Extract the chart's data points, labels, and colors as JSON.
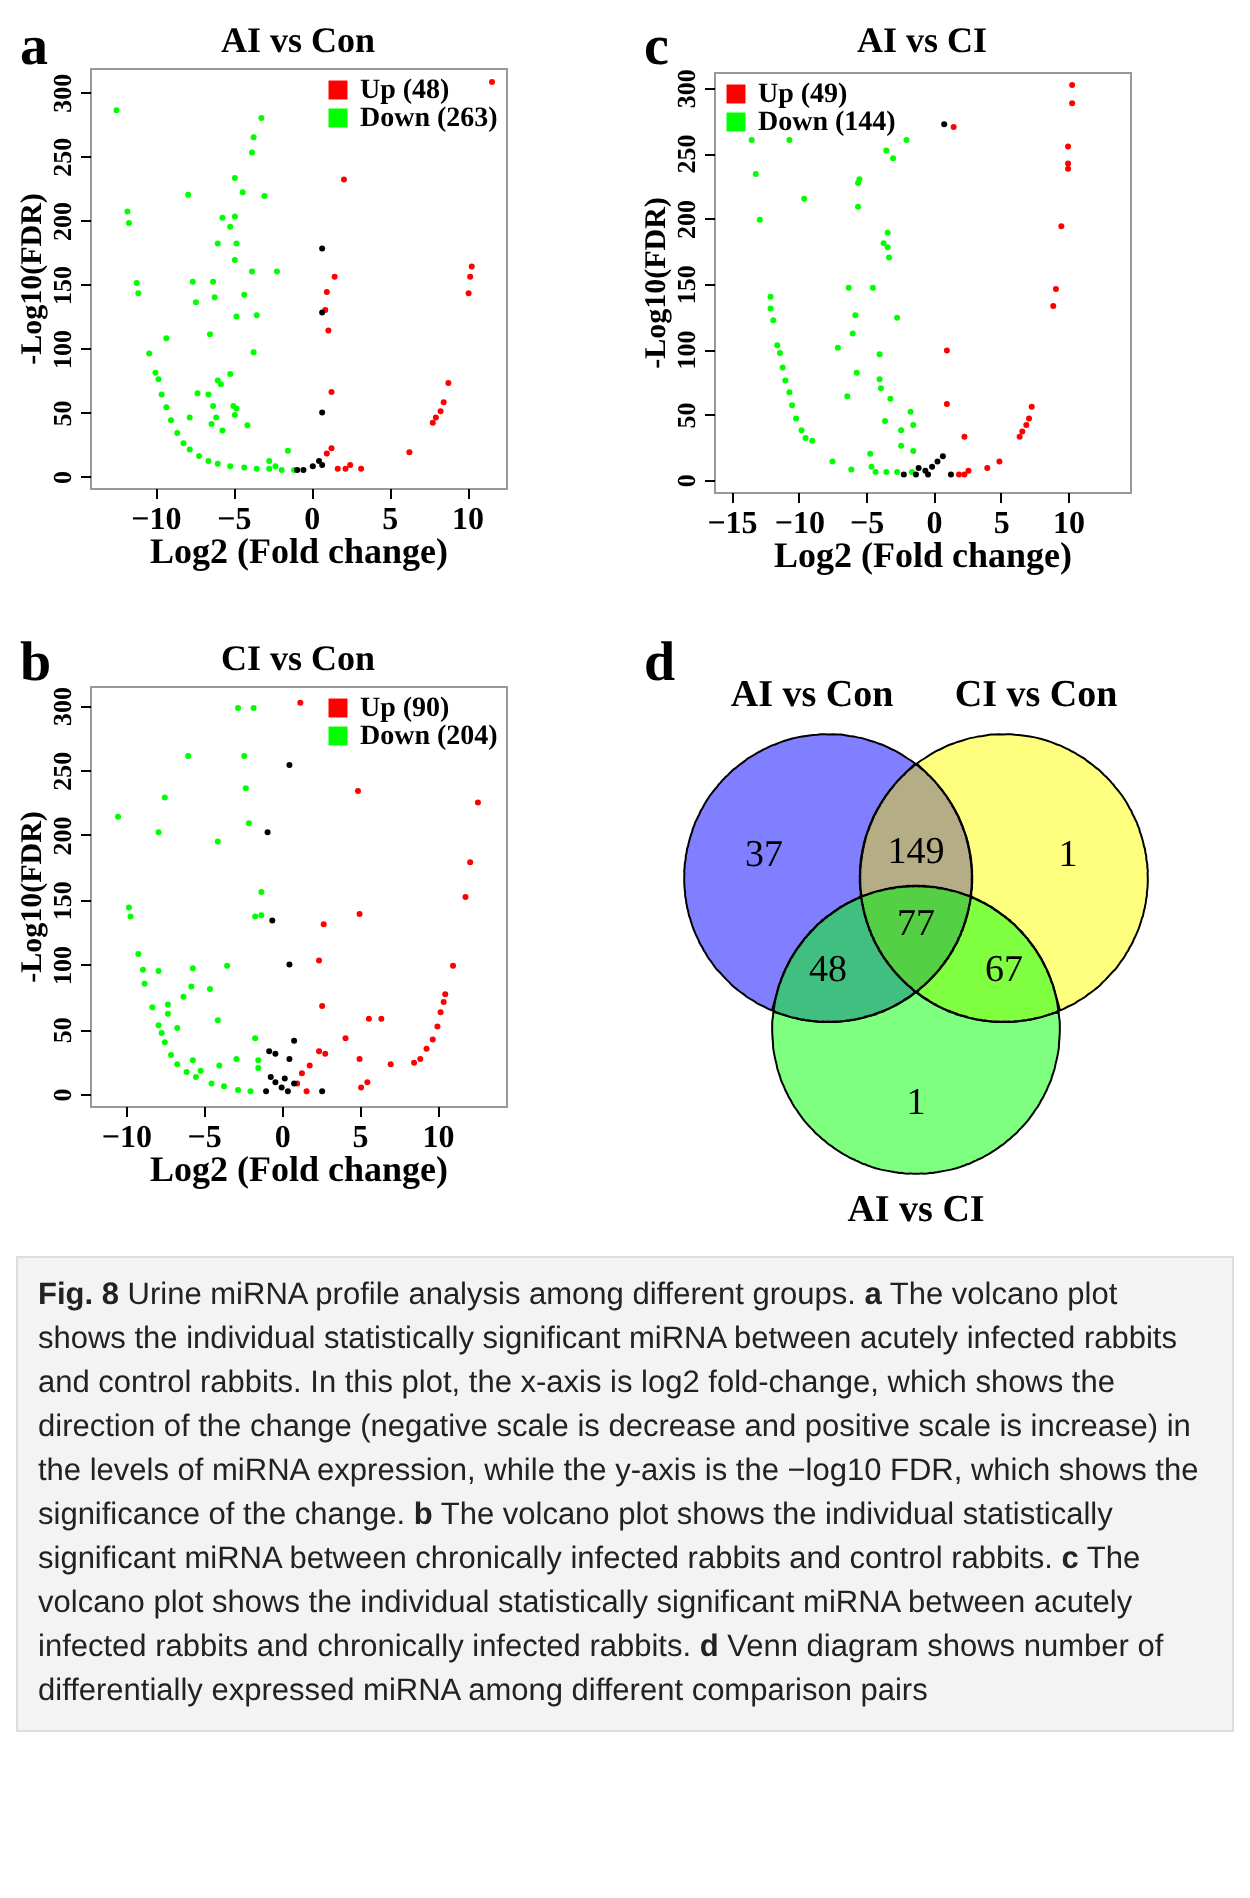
{
  "chart_data": [
    {
      "type": "scatter",
      "title": "AI vs Con",
      "xlabel": "Log2 (Fold change)",
      "ylabel": "-Log10(FDR)",
      "xlim": [
        -14.2,
        12.5
      ],
      "ylim": [
        -9,
        319
      ],
      "xticks": [
        -10,
        -5,
        0,
        5,
        10
      ],
      "yticks": [
        0,
        50,
        100,
        150,
        200,
        250,
        300
      ],
      "legend": "top right",
      "marker": "circle",
      "annotations": [
        "a"
      ],
      "series": [
        {
          "name": "Up (48)",
          "color": "#ff0000",
          "x": [
            11.6,
            2.1,
            1.5,
            1.0,
            0.9,
            1.1,
            1.3,
            1.3,
            1.0,
            1.7,
            2.2,
            2.5,
            3.2,
            6.3,
            8.8,
            8.5,
            8.3,
            8.0,
            7.8,
            10.1,
            10.2,
            10.3
          ],
          "values": [
            308,
            232,
            156,
            144,
            130,
            114,
            66,
            22,
            18,
            6,
            6,
            9,
            6,
            19,
            73,
            58,
            51,
            46,
            42,
            143,
            156,
            164
          ]
        },
        {
          "name": "Down (263)",
          "color": "#00ff00",
          "x": [
            -12.5,
            -11.8,
            -11.7,
            -11.2,
            -11.1,
            -10.4,
            -9.3,
            -7.9,
            -7.6,
            -7.4,
            -7.8,
            -7.3,
            -5.7,
            -6.0,
            -6.3,
            -6.2,
            -6.5,
            -6.6,
            -6.3,
            -6.1,
            -6.4,
            -5.7,
            -6.0,
            -5.8,
            -5.2,
            -5.2,
            -4.9,
            -4.9,
            -4.8,
            -4.9,
            -4.8,
            -5.0,
            -4.8,
            -4.9,
            -4.4,
            -4.3,
            -4.1,
            -3.7,
            -3.8,
            -3.2,
            -3.0,
            -3.8,
            -3.7,
            -3.5,
            -2.2,
            -10.0,
            -9.8,
            -9.6,
            -9.3,
            -9.0,
            -8.6,
            -8.2,
            -7.8,
            -7.2,
            -6.6,
            -6.0,
            -5.2,
            -4.3,
            -3.5,
            -2.7,
            -1.9,
            -1.1,
            -2.3,
            -1.5,
            -2.7
          ],
          "values": [
            286,
            207,
            198,
            151,
            143,
            96,
            108,
            220,
            152,
            136,
            46,
            65,
            202,
            182,
            152,
            140,
            111,
            64,
            55,
            46,
            41,
            36,
            75,
            72,
            80,
            195,
            203,
            233,
            182,
            169,
            125,
            55,
            53,
            48,
            222,
            142,
            40,
            265,
            253,
            280,
            219,
            160,
            97,
            126,
            160,
            81,
            76,
            64,
            54,
            44,
            34,
            26,
            21,
            16,
            12,
            10,
            8,
            7,
            6,
            6,
            5,
            5,
            8,
            20,
            12
          ]
        },
        {
          "color": "#000000",
          "x": [
            0.7,
            0.7,
            0.7,
            0.5,
            0.1,
            -0.5,
            -0.9,
            0.7
          ],
          "values": [
            178,
            128,
            50,
            12,
            8,
            5,
            5,
            9
          ]
        }
      ]
    },
    {
      "type": "scatter",
      "title": "AI vs CI",
      "xlabel": "Log2 (Fold change)",
      "ylabel": "-Log10(FDR)",
      "xlim": [
        -16.3,
        14.6
      ],
      "ylim": [
        -9.3,
        312
      ],
      "xticks": [
        -15,
        -10,
        -5,
        0,
        5,
        10
      ],
      "yticks": [
        0,
        50,
        100,
        150,
        200,
        250,
        300
      ],
      "legend": "top left",
      "marker": "circle",
      "annotations": [
        "c"
      ],
      "series": [
        {
          "name": "Up (49)",
          "color": "#ff0000",
          "x": [
            10.3,
            10.3,
            10.0,
            10.0,
            10.0,
            9.5,
            9.1,
            8.9,
            1.5,
            1.0,
            1.0,
            2.3,
            2.6,
            4.0,
            4.9,
            6.4,
            6.6,
            6.9,
            7.1,
            7.3,
            1.9,
            2.3
          ],
          "values": [
            302,
            288,
            255,
            242,
            238,
            194,
            146,
            133,
            270,
            99,
            58,
            33,
            7,
            9,
            14,
            33,
            37,
            42,
            47,
            56,
            4,
            4
          ]
        },
        {
          "name": "Down (144)",
          "color": "#00ff00",
          "x": [
            -13.5,
            -13.2,
            -12.9,
            -10.7,
            -9.6,
            -12.1,
            -12.1,
            -11.9,
            -11.6,
            -11.4,
            -11.2,
            -11.0,
            -10.7,
            -10.5,
            -10.2,
            -9.8,
            -9.5,
            -9.0,
            -7.5,
            -7.1,
            -6.4,
            -6.3,
            -6.1,
            -6.0,
            -5.8,
            -5.7,
            -5.6,
            -5.6,
            -5.5,
            -4.7,
            -4.6,
            -4.5,
            -4.3,
            -4.0,
            -4.0,
            -3.9,
            -3.7,
            -3.6,
            -3.5,
            -3.5,
            -3.4,
            -3.3,
            -3.4,
            -3.2,
            -3.0,
            -2.7,
            -2.7,
            -2.4,
            -2.4,
            -2.0,
            -1.7,
            -1.5,
            -1.5,
            -1.6
          ],
          "values": [
            260,
            234,
            199,
            260,
            215,
            140,
            131,
            122,
            103,
            97,
            86,
            76,
            67,
            57,
            47,
            38,
            32,
            30,
            14,
            101,
            64,
            147,
            8,
            112,
            126,
            82,
            209,
            227,
            230,
            20,
            10,
            147,
            6,
            96,
            77,
            70,
            181,
            45,
            6,
            252,
            178,
            170,
            189,
            62,
            246,
            6,
            124,
            38,
            26,
            260,
            52,
            42,
            22,
            6
          ]
        },
        {
          "color": "#000000",
          "x": [
            0.8,
            0.7,
            0.3,
            -0.1,
            -0.6,
            -1.1,
            -0.4,
            -1.3,
            1.3,
            -2.2
          ],
          "values": [
            272,
            18,
            14,
            10,
            7,
            9,
            4,
            4,
            4,
            4
          ]
        }
      ]
    },
    {
      "type": "scatter",
      "title": "CI vs Con",
      "xlabel": "Log2 (Fold change)",
      "ylabel": "-Log10(FDR)",
      "xlim": [
        -12.3,
        14.4
      ],
      "ylim": [
        -9.3,
        315
      ],
      "xticks": [
        -10,
        -5,
        0,
        5,
        10
      ],
      "yticks": [
        0,
        50,
        100,
        150,
        200,
        250,
        300
      ],
      "legend": "top right",
      "marker": "circle",
      "annotations": [
        "b"
      ],
      "series": [
        {
          "name": "Up (90)",
          "color": "#ff0000",
          "x": [
            1.2,
            4.9,
            12.6,
            12.1,
            11.8,
            11.0,
            10.5,
            10.4,
            10.2,
            10.0,
            9.7,
            9.3,
            8.9,
            8.5,
            2.7,
            5.0,
            2.4,
            2.6,
            4.1,
            5.6,
            6.4,
            2.8,
            2.4,
            5.0,
            7.0,
            5.5,
            5.1,
            1.8,
            1.3,
            1.6,
            1.0
          ],
          "values": [
            302,
            234,
            225,
            179,
            152,
            99,
            77,
            71,
            63,
            52,
            42,
            35,
            27,
            24,
            131,
            139,
            103,
            68,
            43,
            58,
            58,
            31,
            33,
            27,
            23,
            9,
            5,
            22,
            16,
            2,
            8
          ]
        },
        {
          "name": "Down (204)",
          "color": "#00ff00",
          "x": [
            -10.5,
            -9.8,
            -9.7,
            -9.2,
            -8.9,
            -8.8,
            -8.3,
            -7.9,
            -7.9,
            -7.5,
            -7.3,
            -7.3,
            -6.7,
            -6.3,
            -6.0,
            -5.8,
            -5.7,
            -5.7,
            -5.2,
            -4.1,
            -4.6,
            -4.1,
            -4.0,
            -3.5,
            -2.9,
            -2.8,
            -1.8,
            -2.4,
            -2.3,
            -2.1,
            -1.3,
            -1.3,
            -1.7,
            -1.7,
            -1.5,
            -1.5,
            -7.9,
            -7.7,
            -7.5,
            -7.1,
            -6.7,
            -6.1,
            -5.5,
            -4.5,
            -3.7,
            -2.8,
            -2.0
          ],
          "values": [
            214,
            144,
            137,
            108,
            96,
            85,
            67,
            95,
            202,
            229,
            69,
            62,
            51,
            75,
            261,
            83,
            97,
            26,
            18,
            195,
            81,
            57,
            22,
            99,
            27,
            298,
            298,
            261,
            236,
            209,
            156,
            138,
            137,
            43,
            26,
            20,
            53,
            47,
            40,
            30,
            23,
            17,
            13,
            8,
            6,
            3,
            2
          ]
        },
        {
          "color": "#000000",
          "x": [
            0.5,
            -0.9,
            -0.6,
            0.5,
            0.8,
            0.5,
            -0.8,
            -0.4,
            -0.7,
            -0.4,
            0,
            0.2,
            -1.0,
            0.4,
            2.6,
            0.8
          ],
          "values": [
            254,
            202,
            134,
            100,
            41,
            27,
            33,
            31,
            13,
            9,
            5,
            12,
            2,
            2,
            2,
            8
          ]
        }
      ]
    },
    {
      "type": "other",
      "colors": [
        "#7f7fff",
        "#ffff7f",
        "#7fff7f",
        "#b5ad86",
        "#40bf80",
        "#7fff3f",
        "#55d045"
      ],
      "annotations": [
        "d",
        "AI vs Con",
        "CI vs Con",
        "AI vs CI",
        "37",
        "1",
        "1",
        "149",
        "48",
        "67",
        "77"
      ]
    },
    {
      "type": "other",
      "title": "Fig. 8",
      "annotations": [
        "Urine miRNA profile analysis among different groups.",
        "a",
        "The volcano plot shows the individual statistically significant miRNA between acutely infected rabbits and control rabbits. In this plot, the x-axis is log2 fold-change, which shows the direction of the change (negative scale is decrease and positive scale is increase) in the levels of miRNA expression, while the y-axis is the −log10 FDR, which shows the significance of the change.",
        "b",
        "The volcano plot shows the individual statistically significant miRNA between chronically infected rabbits and control rabbits.",
        "c",
        "The volcano plot shows the individual statistically significant miRNA between acutely infected rabbits and chronically infected rabbits.",
        "d",
        "Venn diagram shows number of differentially expressed miRNA among different comparison pairs"
      ]
    }
  ]
}
